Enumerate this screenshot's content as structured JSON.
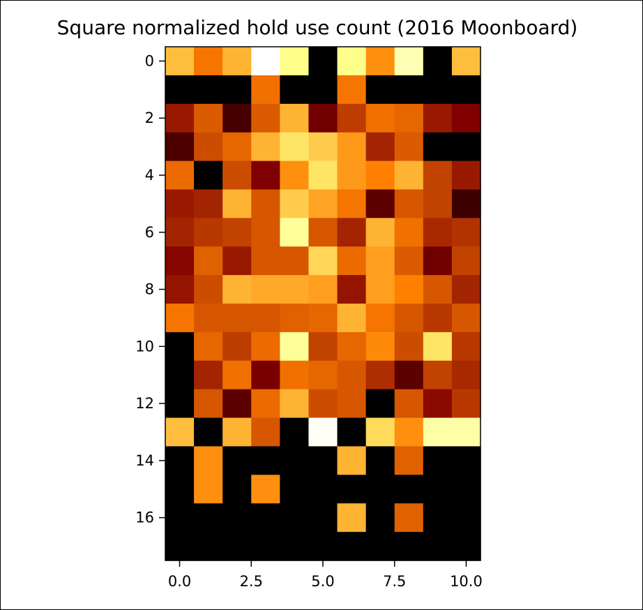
{
  "chart_data": {
    "type": "heatmap",
    "title": "Square normalized hold use count (2016 Moonboard)",
    "xlabel": "",
    "ylabel": "",
    "colormap": "afmhot",
    "value_range": [
      0,
      1
    ],
    "n_cols": 11,
    "n_rows": 18,
    "xlim": [
      -0.5,
      10.5
    ],
    "ylim": [
      17.5,
      -0.5
    ],
    "x_ticks": [
      0.0,
      2.5,
      5.0,
      7.5,
      10.0
    ],
    "x_tick_labels": [
      "0.0",
      "2.5",
      "5.0",
      "7.5",
      "10.0"
    ],
    "y_ticks": [
      0,
      2,
      4,
      6,
      8,
      10,
      12,
      14,
      16
    ],
    "y_tick_labels": [
      "0",
      "2",
      "4",
      "6",
      "8",
      "10",
      "12",
      "14",
      "16"
    ],
    "grid": false,
    "values": [
      [
        0.62,
        0.48,
        0.6,
        1.0,
        0.77,
        0.0,
        0.77,
        0.53,
        0.85,
        0.0,
        0.62
      ],
      [
        0.0,
        0.0,
        0.0,
        0.47,
        0.0,
        0.0,
        0.48,
        0.0,
        0.0,
        0.0,
        0.0
      ],
      [
        0.3,
        0.43,
        0.14,
        0.43,
        0.6,
        0.22,
        0.37,
        0.47,
        0.45,
        0.3,
        0.25
      ],
      [
        0.15,
        0.4,
        0.45,
        0.6,
        0.7,
        0.65,
        0.55,
        0.32,
        0.43,
        0.0,
        0.0
      ],
      [
        0.46,
        0.0,
        0.4,
        0.25,
        0.53,
        0.7,
        0.55,
        0.5,
        0.6,
        0.38,
        0.3
      ],
      [
        0.3,
        0.32,
        0.6,
        0.42,
        0.65,
        0.57,
        0.48,
        0.18,
        0.42,
        0.38,
        0.12
      ],
      [
        0.32,
        0.36,
        0.38,
        0.42,
        0.8,
        0.42,
        0.32,
        0.6,
        0.47,
        0.33,
        0.35
      ],
      [
        0.26,
        0.44,
        0.3,
        0.42,
        0.42,
        0.67,
        0.46,
        0.56,
        0.43,
        0.22,
        0.38
      ],
      [
        0.29,
        0.4,
        0.6,
        0.58,
        0.58,
        0.56,
        0.29,
        0.56,
        0.5,
        0.42,
        0.32
      ],
      [
        0.48,
        0.42,
        0.42,
        0.42,
        0.44,
        0.45,
        0.6,
        0.48,
        0.42,
        0.36,
        0.42
      ],
      [
        0.0,
        0.45,
        0.37,
        0.46,
        0.8,
        0.38,
        0.45,
        0.52,
        0.4,
        0.7,
        0.36
      ],
      [
        0.0,
        0.32,
        0.47,
        0.24,
        0.47,
        0.45,
        0.42,
        0.34,
        0.18,
        0.38,
        0.33
      ],
      [
        0.0,
        0.42,
        0.18,
        0.46,
        0.6,
        0.4,
        0.42,
        0.0,
        0.42,
        0.27,
        0.36
      ],
      [
        0.62,
        0.0,
        0.6,
        0.42,
        0.0,
        0.98,
        0.0,
        0.68,
        0.53,
        0.83,
        0.83
      ],
      [
        0.0,
        0.53,
        0.0,
        0.0,
        0.0,
        0.0,
        0.6,
        0.0,
        0.44,
        0.0,
        0.0
      ],
      [
        0.0,
        0.53,
        0.0,
        0.53,
        0.0,
        0.0,
        0.0,
        0.0,
        0.0,
        0.0,
        0.0
      ],
      [
        0.0,
        0.0,
        0.0,
        0.0,
        0.0,
        0.0,
        0.6,
        0.0,
        0.44,
        0.0,
        0.0
      ],
      [
        0.0,
        0.0,
        0.0,
        0.0,
        0.0,
        0.0,
        0.0,
        0.0,
        0.0,
        0.0,
        0.0
      ]
    ]
  }
}
